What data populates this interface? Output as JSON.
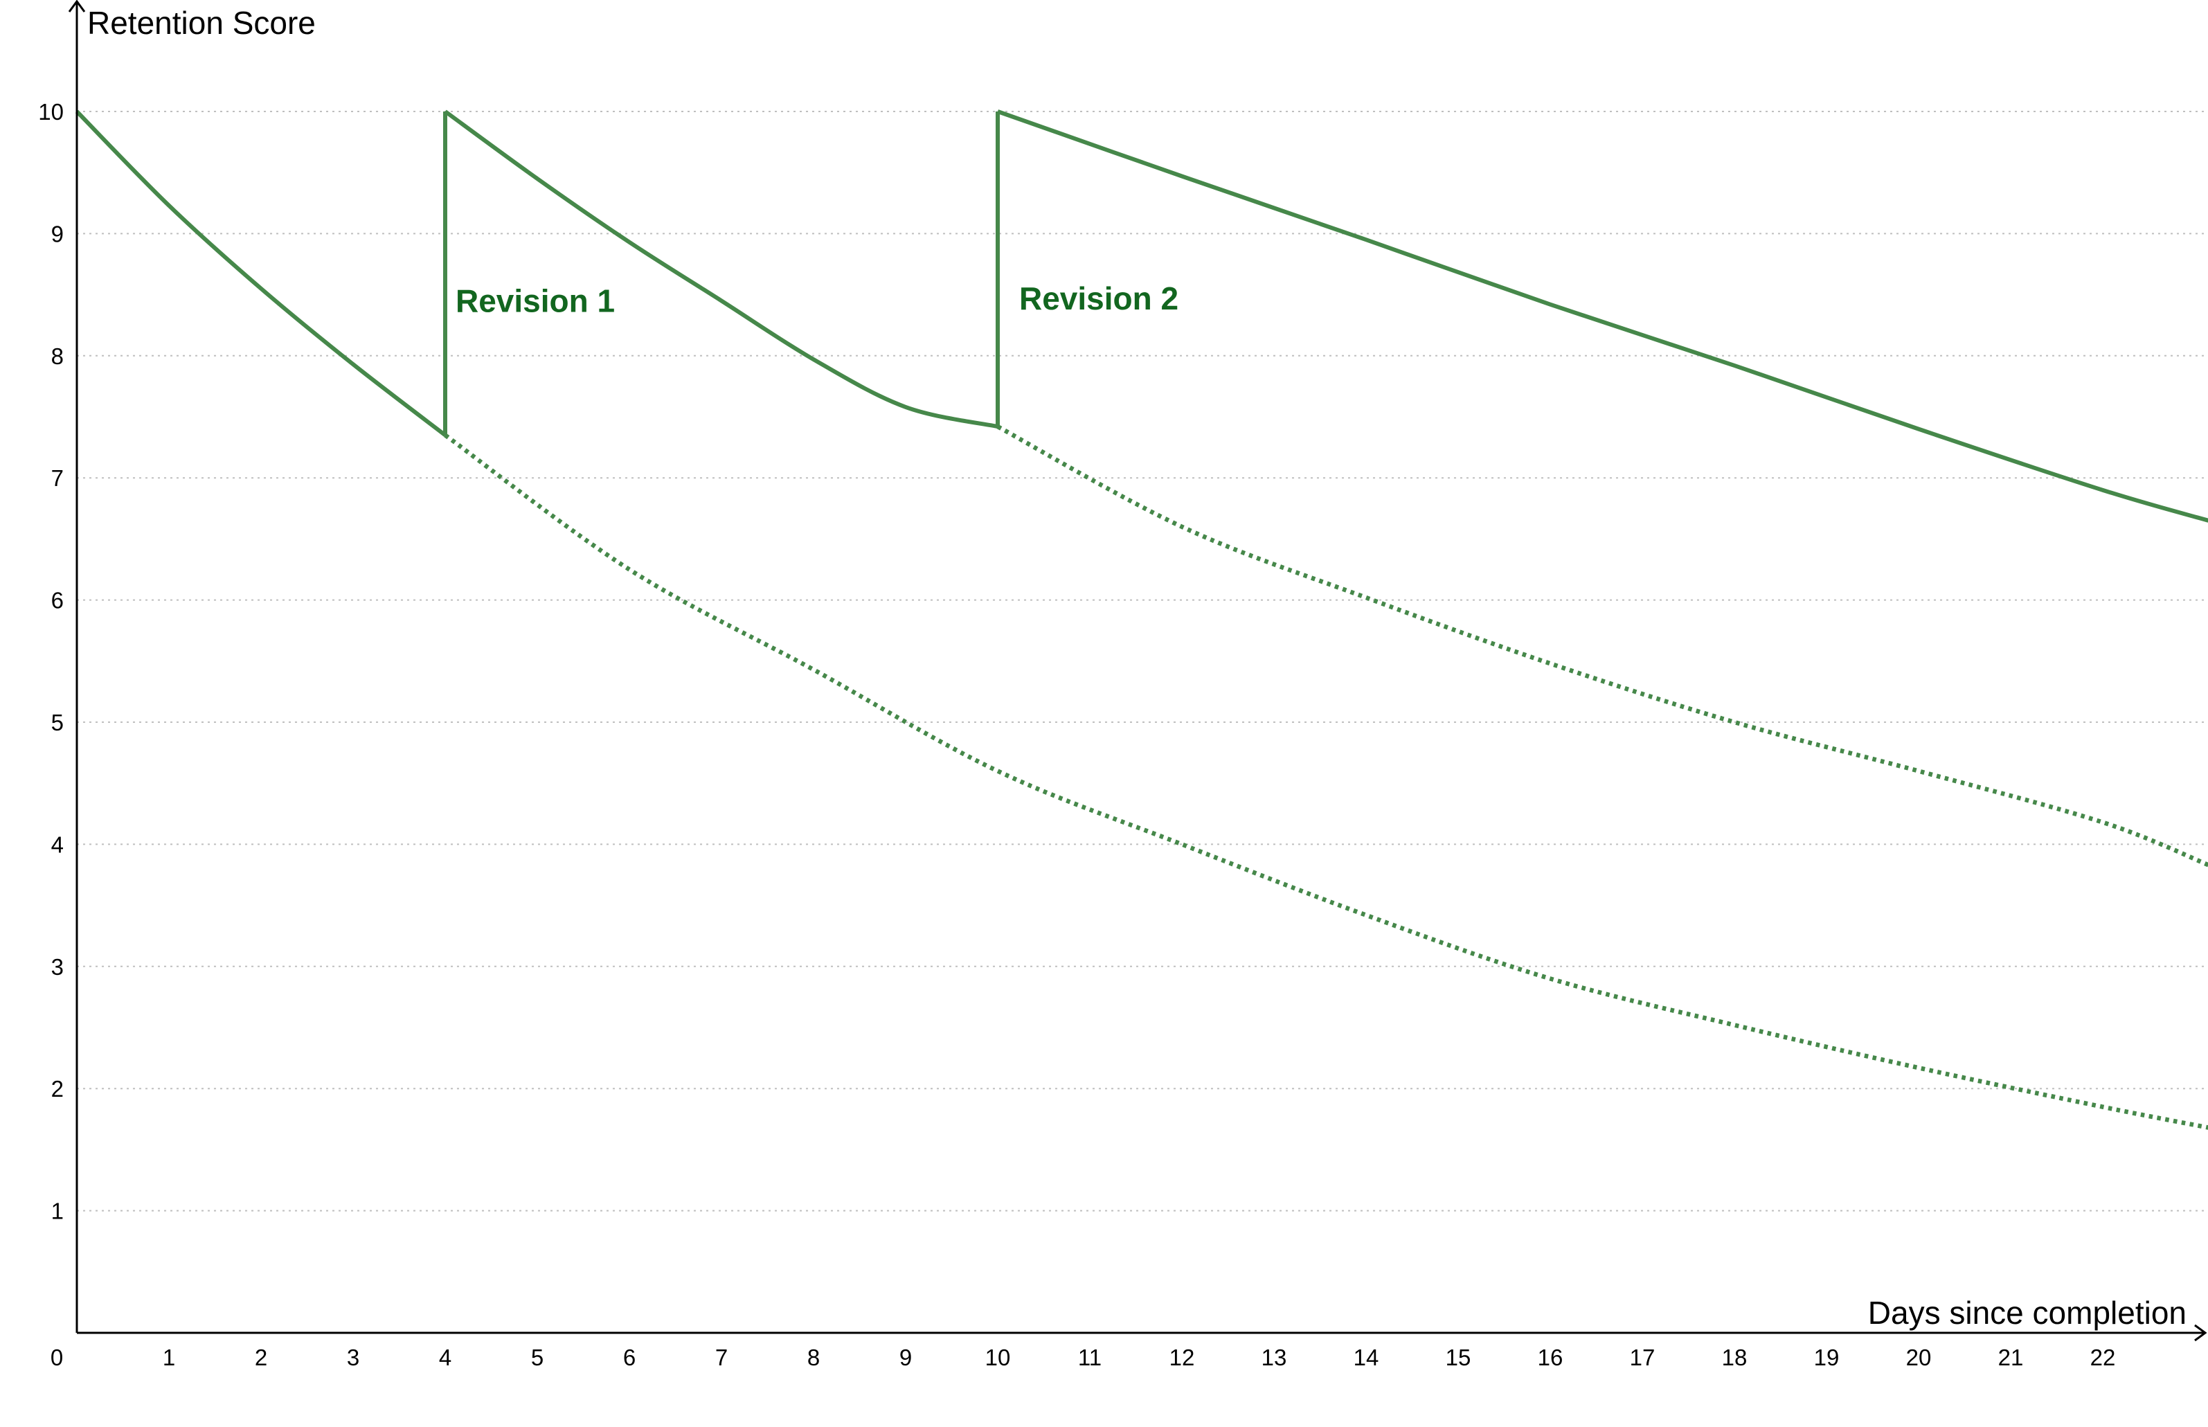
{
  "chart_data": {
    "type": "line",
    "xlabel": "Days since completion",
    "ylabel": "Retention Score",
    "xlim": [
      0,
      23.15
    ],
    "ylim": [
      0,
      11.0
    ],
    "x_ticks": [
      0,
      1,
      2,
      3,
      4,
      5,
      6,
      7,
      8,
      9,
      10,
      11,
      12,
      13,
      14,
      15,
      16,
      17,
      18,
      19,
      20,
      21,
      22
    ],
    "y_ticks": [
      1,
      2,
      3,
      4,
      5,
      6,
      7,
      8,
      9,
      10
    ],
    "grid": "horizontal dotted",
    "colors": {
      "series": "#46884a",
      "annotation": "#12661f",
      "grid": "#bfbfbf",
      "axis": "#000000"
    },
    "series": [
      {
        "style": "solid",
        "points": [
          [
            0,
            10.0
          ],
          [
            1,
            9.23
          ],
          [
            2,
            8.55
          ],
          [
            3,
            7.93
          ],
          [
            4,
            7.35
          ],
          [
            4,
            10.0
          ],
          [
            5,
            9.45
          ],
          [
            6,
            8.93
          ],
          [
            7,
            8.45
          ],
          [
            8,
            7.97
          ],
          [
            9,
            7.58
          ],
          [
            10,
            7.42
          ],
          [
            10,
            10.0
          ],
          [
            12,
            9.47
          ],
          [
            14,
            8.95
          ],
          [
            16,
            8.42
          ],
          [
            18,
            7.92
          ],
          [
            20,
            7.4
          ],
          [
            22,
            6.9
          ],
          [
            23.15,
            6.65
          ]
        ]
      },
      {
        "style": "dotted",
        "points": [
          [
            4,
            7.35
          ],
          [
            6,
            6.25
          ],
          [
            8,
            5.43
          ],
          [
            10,
            4.6
          ],
          [
            12,
            4.0
          ],
          [
            14,
            3.42
          ],
          [
            16,
            2.9
          ],
          [
            18,
            2.52
          ],
          [
            20,
            2.17
          ],
          [
            22,
            1.85
          ],
          [
            23.15,
            1.68
          ]
        ]
      },
      {
        "style": "dotted",
        "points": [
          [
            10,
            7.42
          ],
          [
            12,
            6.6
          ],
          [
            14,
            6.02
          ],
          [
            16,
            5.48
          ],
          [
            18,
            5.0
          ],
          [
            20,
            4.6
          ],
          [
            22,
            4.18
          ],
          [
            23.15,
            3.83
          ]
        ]
      }
    ],
    "annotations": [
      {
        "text": "Revision 1",
        "x": 4,
        "y": 8.45
      },
      {
        "text": "Revision 2",
        "x": 10,
        "y": 8.47
      }
    ]
  }
}
